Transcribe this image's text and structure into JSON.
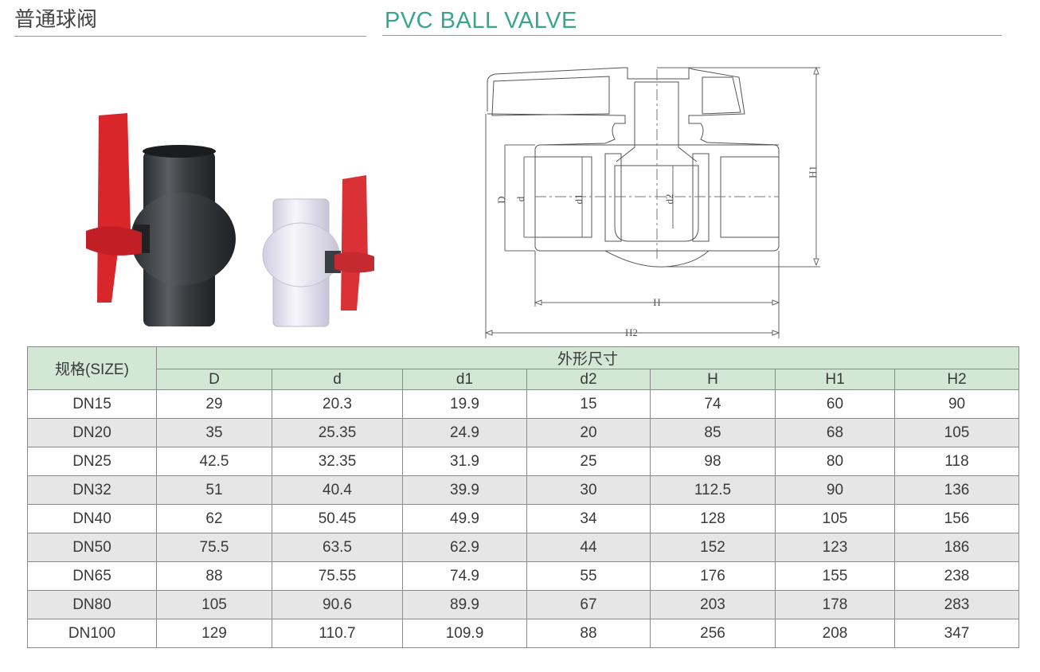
{
  "header": {
    "title_cn": "普通球阀",
    "title_en": "PVC BALL VALVE",
    "accent_color": "#3aa58e"
  },
  "drawing": {
    "labels": {
      "D": "D",
      "d": "d",
      "d1": "d1",
      "d2": "d2",
      "H": "H",
      "H1": "H1",
      "H2": "H2"
    }
  },
  "photos": [
    {
      "name": "dark-grey-pvc-ball-valve",
      "body_color": "#3c4043",
      "handle_color": "#d8262b"
    },
    {
      "name": "clear-pvc-ball-valve",
      "body_color": "#e4e2ee",
      "handle_color": "#d8262b"
    }
  ],
  "table": {
    "size_header": "规格(SIZE)",
    "group_header": "外形尺寸",
    "columns": [
      "D",
      "d",
      "d1",
      "d2",
      "H",
      "H1",
      "H2"
    ],
    "rows": [
      [
        "DN15",
        "29",
        "20.3",
        "19.9",
        "15",
        "74",
        "60",
        "90"
      ],
      [
        "DN20",
        "35",
        "25.35",
        "24.9",
        "20",
        "85",
        "68",
        "105"
      ],
      [
        "DN25",
        "42.5",
        "32.35",
        "31.9",
        "25",
        "98",
        "80",
        "118"
      ],
      [
        "DN32",
        "51",
        "40.4",
        "39.9",
        "30",
        "112.5",
        "90",
        "136"
      ],
      [
        "DN40",
        "62",
        "50.45",
        "49.9",
        "34",
        "128",
        "105",
        "156"
      ],
      [
        "DN50",
        "75.5",
        "63.5",
        "62.9",
        "44",
        "152",
        "123",
        "186"
      ],
      [
        "DN65",
        "88",
        "75.55",
        "74.9",
        "55",
        "176",
        "155",
        "238"
      ],
      [
        "DN80",
        "105",
        "90.6",
        "89.9",
        "67",
        "203",
        "178",
        "283"
      ],
      [
        "DN100",
        "129",
        "110.7",
        "109.9",
        "88",
        "256",
        "208",
        "347"
      ]
    ]
  }
}
